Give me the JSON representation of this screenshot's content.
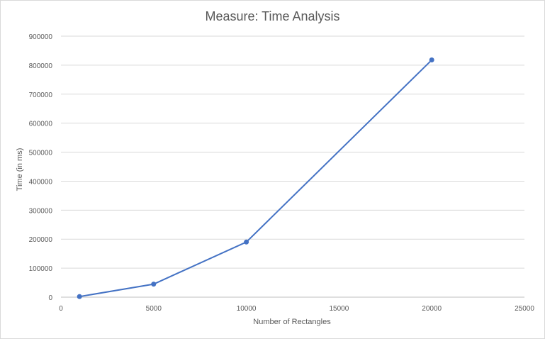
{
  "chart_data": {
    "type": "scatter",
    "title": "Measure: Time Analysis",
    "xlabel": "Number  of Rectangles",
    "ylabel": "Time (in ms)",
    "xlim": [
      0,
      25000
    ],
    "ylim": [
      0,
      900000
    ],
    "xticks": [
      0,
      5000,
      10000,
      15000,
      20000,
      25000
    ],
    "yticks": [
      0,
      100000,
      200000,
      300000,
      400000,
      500000,
      600000,
      700000,
      800000,
      900000
    ],
    "grid": true,
    "legend": "none",
    "series": [
      {
        "color": "#4472c4",
        "x": [
          1000,
          5000,
          10000,
          20000
        ],
        "y": [
          2000,
          45000,
          190000,
          818000
        ]
      }
    ]
  }
}
